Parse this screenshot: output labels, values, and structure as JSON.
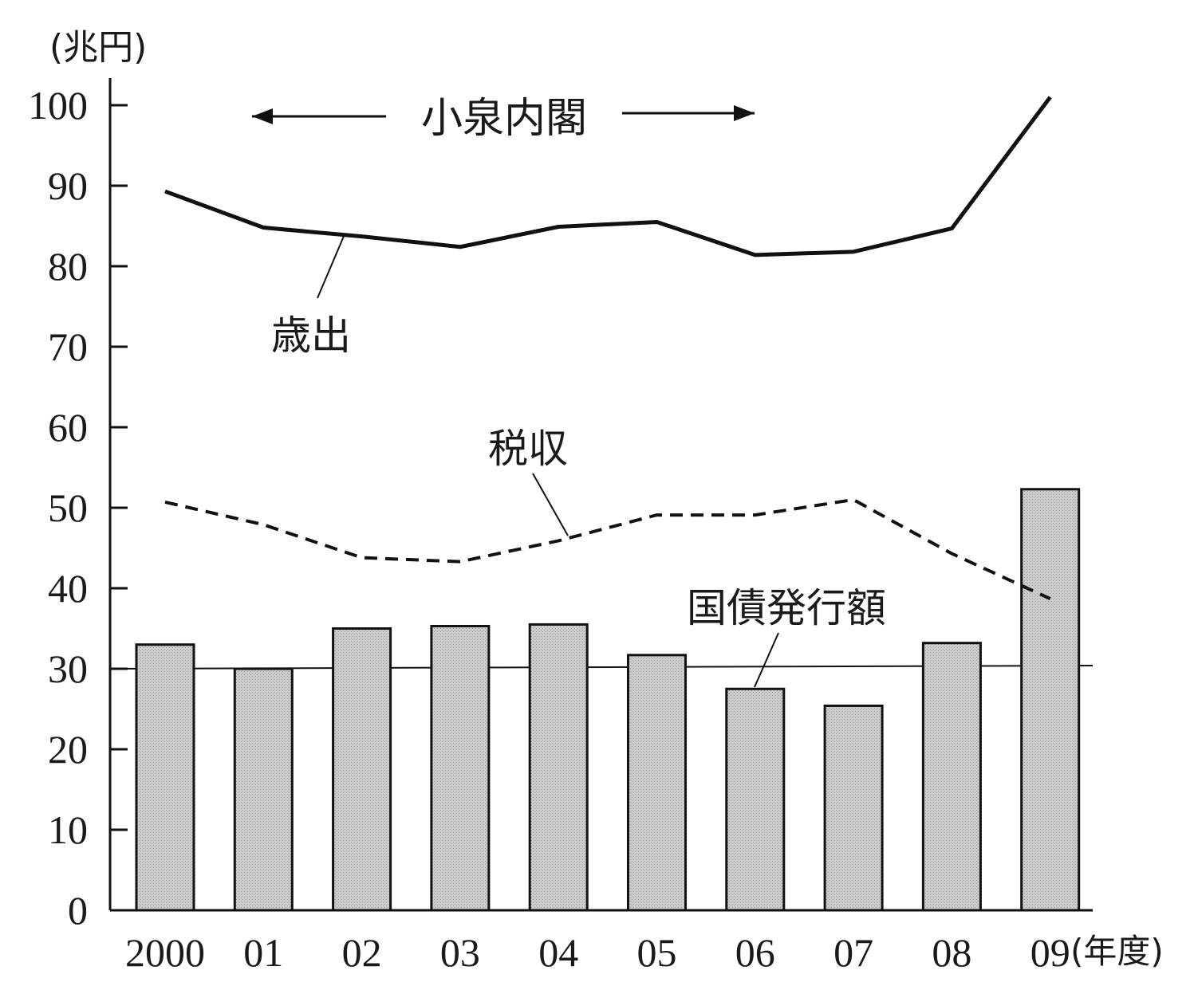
{
  "chart_data": {
    "type": "bar",
    "unit_label": "(兆円)",
    "x_unit_label": "(年度)",
    "categories": [
      "2000",
      "01",
      "02",
      "03",
      "04",
      "05",
      "06",
      "07",
      "08",
      "09"
    ],
    "ylim": [
      0,
      100
    ],
    "yticks": [
      0,
      10,
      20,
      30,
      40,
      50,
      60,
      70,
      80,
      90,
      100
    ],
    "grid": false,
    "reference_line": 30,
    "series": [
      {
        "name": "国債発行額",
        "type": "bar",
        "values": [
          33,
          30,
          35,
          35.3,
          35.5,
          31.7,
          27.5,
          25.4,
          33.2,
          52.3
        ]
      },
      {
        "name": "歳出",
        "type": "line",
        "style": "solid",
        "values": [
          89.3,
          84.8,
          83.7,
          82.4,
          84.9,
          85.5,
          81.4,
          81.8,
          84.7,
          101
        ]
      },
      {
        "name": "税収",
        "type": "line",
        "style": "dashed",
        "values": [
          50.7,
          47.9,
          43.8,
          43.3,
          45.9,
          49.1,
          49.1,
          51,
          44.3,
          38.7
        ]
      }
    ],
    "annotation": "小泉内閣",
    "bar_color": "#cccccc",
    "line_color": "#111111"
  }
}
